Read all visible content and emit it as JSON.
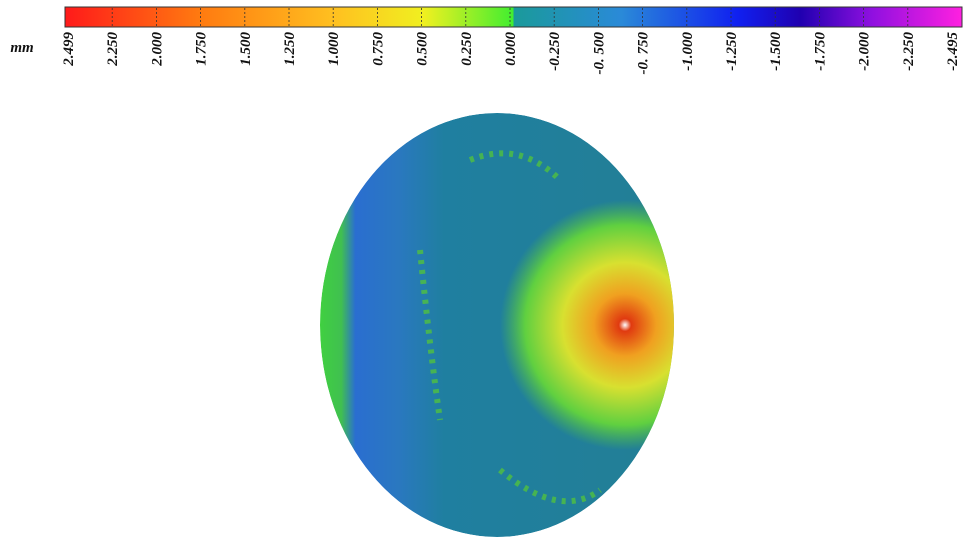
{
  "colorbar": {
    "unit": "mm",
    "labels": [
      "2.499",
      "2.250",
      "2.000",
      "1.750",
      "1.500",
      "1.250",
      "1.000",
      "0.750",
      "0.500",
      "0.250",
      "0.000",
      "-0.250",
      "-0. 500",
      "-0. 750",
      "-1.000",
      "-1.250",
      "-1.500",
      "-1.750",
      "-2.000",
      "-2.250",
      "-2.495"
    ]
  }
}
